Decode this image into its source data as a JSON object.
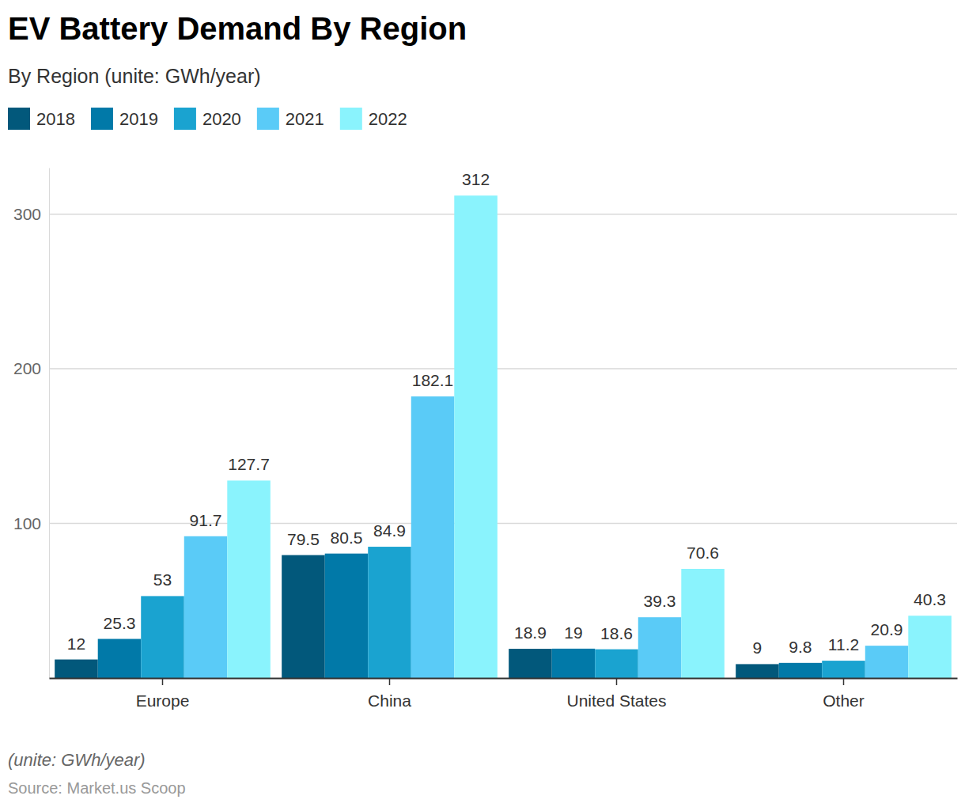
{
  "chart_data": {
    "type": "bar",
    "title": "EV Battery Demand By Region",
    "subtitle": "By Region (unite: GWh/year)",
    "annotations": [
      "(unite: GWh/year)"
    ],
    "source": "Source: Market.us Scoop",
    "categories": [
      "Europe",
      "China",
      "United States",
      "Other"
    ],
    "series": [
      {
        "name": "2018",
        "color": "#02587b",
        "values": [
          12,
          79.5,
          18.9,
          9
        ]
      },
      {
        "name": "2019",
        "color": "#0179a8",
        "values": [
          25.3,
          80.5,
          19,
          9.8
        ]
      },
      {
        "name": "2020",
        "color": "#1aa3d0",
        "values": [
          53,
          84.9,
          18.6,
          11.2
        ]
      },
      {
        "name": "2021",
        "color": "#5acbf7",
        "values": [
          91.7,
          182.1,
          39.3,
          20.9
        ]
      },
      {
        "name": "2022",
        "color": "#8af3fd",
        "values": [
          127.7,
          312,
          70.6,
          40.3
        ]
      }
    ],
    "ylim": [
      0,
      330
    ],
    "yticks": [
      100,
      200,
      300
    ],
    "grid": true,
    "legend": "top-left",
    "data_labels": true
  }
}
